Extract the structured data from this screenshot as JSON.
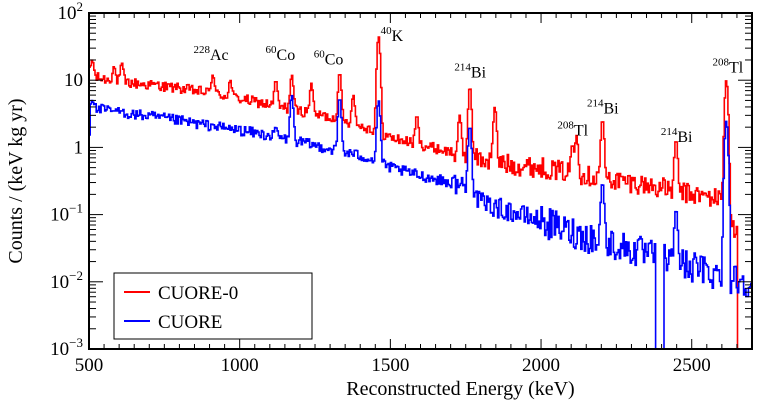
{
  "chart_data": {
    "type": "line",
    "xlabel": "Reconstructed Energy (keV)",
    "ylabel": "Counts / (keV kg yr)",
    "xlim": [
      500,
      2700
    ],
    "ylim": [
      0.001,
      100
    ],
    "yscale": "log",
    "grid": false,
    "legend_position": "bottom-left",
    "x_ticks": [
      500,
      1000,
      1500,
      2000,
      2500
    ],
    "x_tick_labels": [
      "500",
      "1000",
      "1500",
      "2000",
      "2500"
    ],
    "y_ticks": [
      {
        "value": 0.001,
        "base": "10",
        "exp": "−3"
      },
      {
        "value": 0.01,
        "base": "10",
        "exp": "−2"
      },
      {
        "value": 0.1,
        "base": "10",
        "exp": "−1"
      },
      {
        "value": 1,
        "base": "1",
        "exp": ""
      },
      {
        "value": 10,
        "base": "10",
        "exp": ""
      },
      {
        "value": 100,
        "base": "10",
        "exp": "2"
      }
    ],
    "series": [
      {
        "name": "CUORE-0",
        "color": "#ff0000",
        "continuum": [
          [
            500,
            13
          ],
          [
            520,
            11
          ],
          [
            600,
            9.5
          ],
          [
            700,
            8.5
          ],
          [
            800,
            7.5
          ],
          [
            900,
            6.5
          ],
          [
            1000,
            5.3
          ],
          [
            1100,
            4.3
          ],
          [
            1200,
            3.5
          ],
          [
            1300,
            2.8
          ],
          [
            1400,
            2.1
          ],
          [
            1450,
            1.8
          ],
          [
            1500,
            1.4
          ],
          [
            1600,
            1.1
          ],
          [
            1700,
            0.85
          ],
          [
            1780,
            0.7
          ],
          [
            1900,
            0.55
          ],
          [
            2000,
            0.5
          ],
          [
            2100,
            0.42
          ],
          [
            2200,
            0.35
          ],
          [
            2300,
            0.3
          ],
          [
            2400,
            0.25
          ],
          [
            2500,
            0.2
          ],
          [
            2600,
            0.17
          ],
          [
            2700,
            0.015
          ]
        ],
        "peaks": [
          [
            511,
            20
          ],
          [
            583,
            16
          ],
          [
            609,
            18
          ],
          [
            727,
            9
          ],
          [
            795,
            8
          ],
          [
            911,
            12
          ],
          [
            969,
            10
          ],
          [
            1120,
            10
          ],
          [
            1173,
            12
          ],
          [
            1238,
            9
          ],
          [
            1332,
            13
          ],
          [
            1377,
            6
          ],
          [
            1461,
            45
          ],
          [
            1588,
            3
          ],
          [
            1730,
            3
          ],
          [
            1764,
            8
          ],
          [
            1847,
            4
          ],
          [
            2104,
            1.1
          ],
          [
            2118,
            1.5
          ],
          [
            2204,
            2.6
          ],
          [
            2448,
            1.3
          ],
          [
            2615,
            10
          ]
        ]
      },
      {
        "name": "CUORE",
        "color": "#0000ff",
        "continuum": [
          [
            500,
            0.08
          ],
          [
            503,
            4.2
          ],
          [
            520,
            3.8
          ],
          [
            600,
            3.3
          ],
          [
            700,
            2.9
          ],
          [
            800,
            2.5
          ],
          [
            900,
            2.1
          ],
          [
            1000,
            1.8
          ],
          [
            1100,
            1.5
          ],
          [
            1200,
            1.2
          ],
          [
            1300,
            0.95
          ],
          [
            1400,
            0.75
          ],
          [
            1450,
            0.65
          ],
          [
            1500,
            0.5
          ],
          [
            1600,
            0.38
          ],
          [
            1700,
            0.3
          ],
          [
            1760,
            0.26
          ],
          [
            1800,
            0.15
          ],
          [
            1900,
            0.11
          ],
          [
            2000,
            0.08
          ],
          [
            2100,
            0.055
          ],
          [
            2200,
            0.04
          ],
          [
            2300,
            0.03
          ],
          [
            2400,
            0.022
          ],
          [
            2500,
            0.017
          ],
          [
            2600,
            0.012
          ],
          [
            2700,
            0.01
          ]
        ],
        "peaks": [
          [
            511,
            5
          ],
          [
            583,
            3.5
          ],
          [
            609,
            3.5
          ],
          [
            835,
            1.7
          ],
          [
            911,
            2.2
          ],
          [
            969,
            1.6
          ],
          [
            1120,
            2
          ],
          [
            1173,
            6
          ],
          [
            1332,
            5.5
          ],
          [
            1461,
            5
          ],
          [
            1764,
            2.1
          ],
          [
            2204,
            0.3
          ],
          [
            2448,
            0.12
          ],
          [
            2615,
            2.5
          ]
        ]
      }
    ],
    "annotations": [
      {
        "text": "Ac",
        "sup": "228",
        "x": 905,
        "y": 20
      },
      {
        "text": "Co",
        "sup": "60",
        "x": 1135,
        "y": 20
      },
      {
        "text": "Co",
        "sup": "60",
        "x": 1295,
        "y": 17
      },
      {
        "text": "K",
        "sup": "40",
        "x": 1505,
        "y": 38
      },
      {
        "text": "Bi",
        "sup": "214",
        "x": 1765,
        "y": 11
      },
      {
        "text": "Bi",
        "sup": "214",
        "x": 2205,
        "y": 3.2
      },
      {
        "text": "Tl",
        "sup": "208",
        "x": 2105,
        "y": 1.5
      },
      {
        "text": "Bi",
        "sup": "214",
        "x": 2450,
        "y": 1.2
      },
      {
        "text": "Tl",
        "sup": "208",
        "x": 2620,
        "y": 13
      }
    ]
  }
}
